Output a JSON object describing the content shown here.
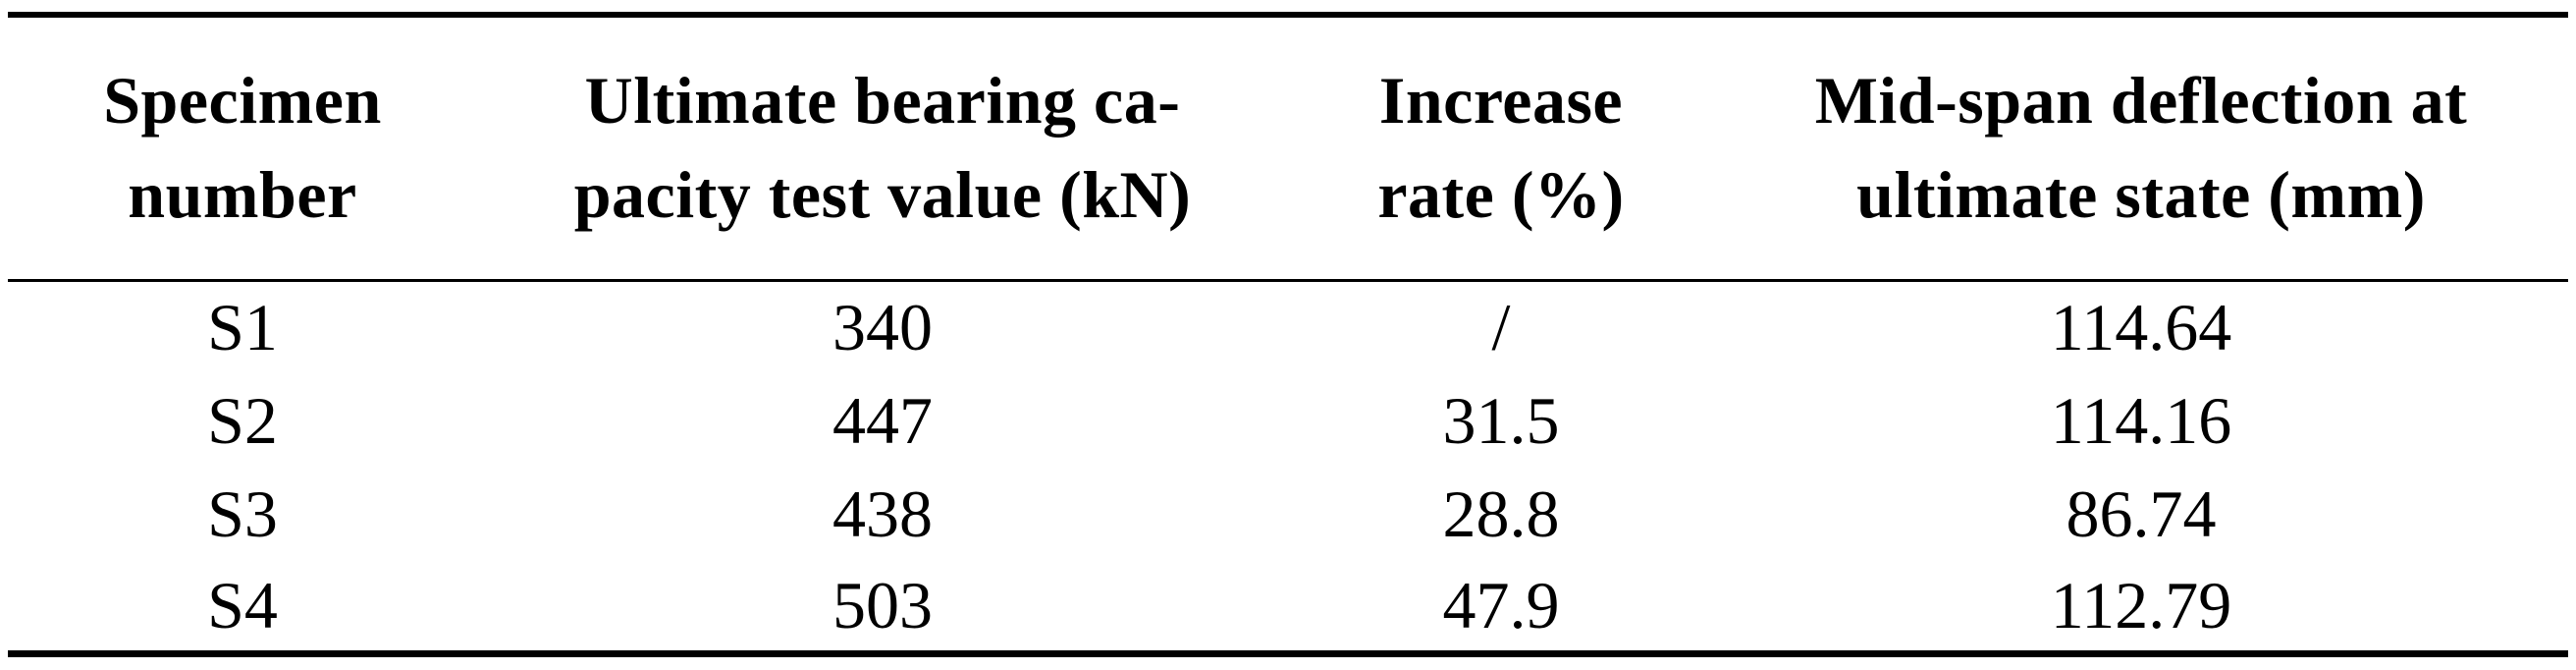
{
  "colors": {
    "background": "#ffffff",
    "text": "#000000",
    "rule": "#000000"
  },
  "table": {
    "columns": [
      {
        "key": "specimen",
        "label": "Specimen number",
        "lines": [
          "Specimen",
          "number"
        ]
      },
      {
        "key": "capacity",
        "label": "Ultimate bearing capacity test value (kN)",
        "lines": [
          "Ultimate bearing ca-",
          "pacity test value (kN)"
        ]
      },
      {
        "key": "increase",
        "label": "Increase rate (%)",
        "lines": [
          "Increase",
          "rate (%)"
        ]
      },
      {
        "key": "deflection",
        "label": "Mid-span deflection at ultimate state (mm)",
        "lines": [
          "Mid-span deflection at",
          "ultimate state (mm)"
        ]
      }
    ],
    "rows": [
      {
        "specimen": "S1",
        "capacity": "340",
        "increase": "/",
        "deflection": "114.64"
      },
      {
        "specimen": "S2",
        "capacity": "447",
        "increase": "31.5",
        "deflection": "114.16"
      },
      {
        "specimen": "S3",
        "capacity": "438",
        "increase": "28.8",
        "deflection": "86.74"
      },
      {
        "specimen": "S4",
        "capacity": "503",
        "increase": "47.9",
        "deflection": "112.79"
      }
    ]
  }
}
